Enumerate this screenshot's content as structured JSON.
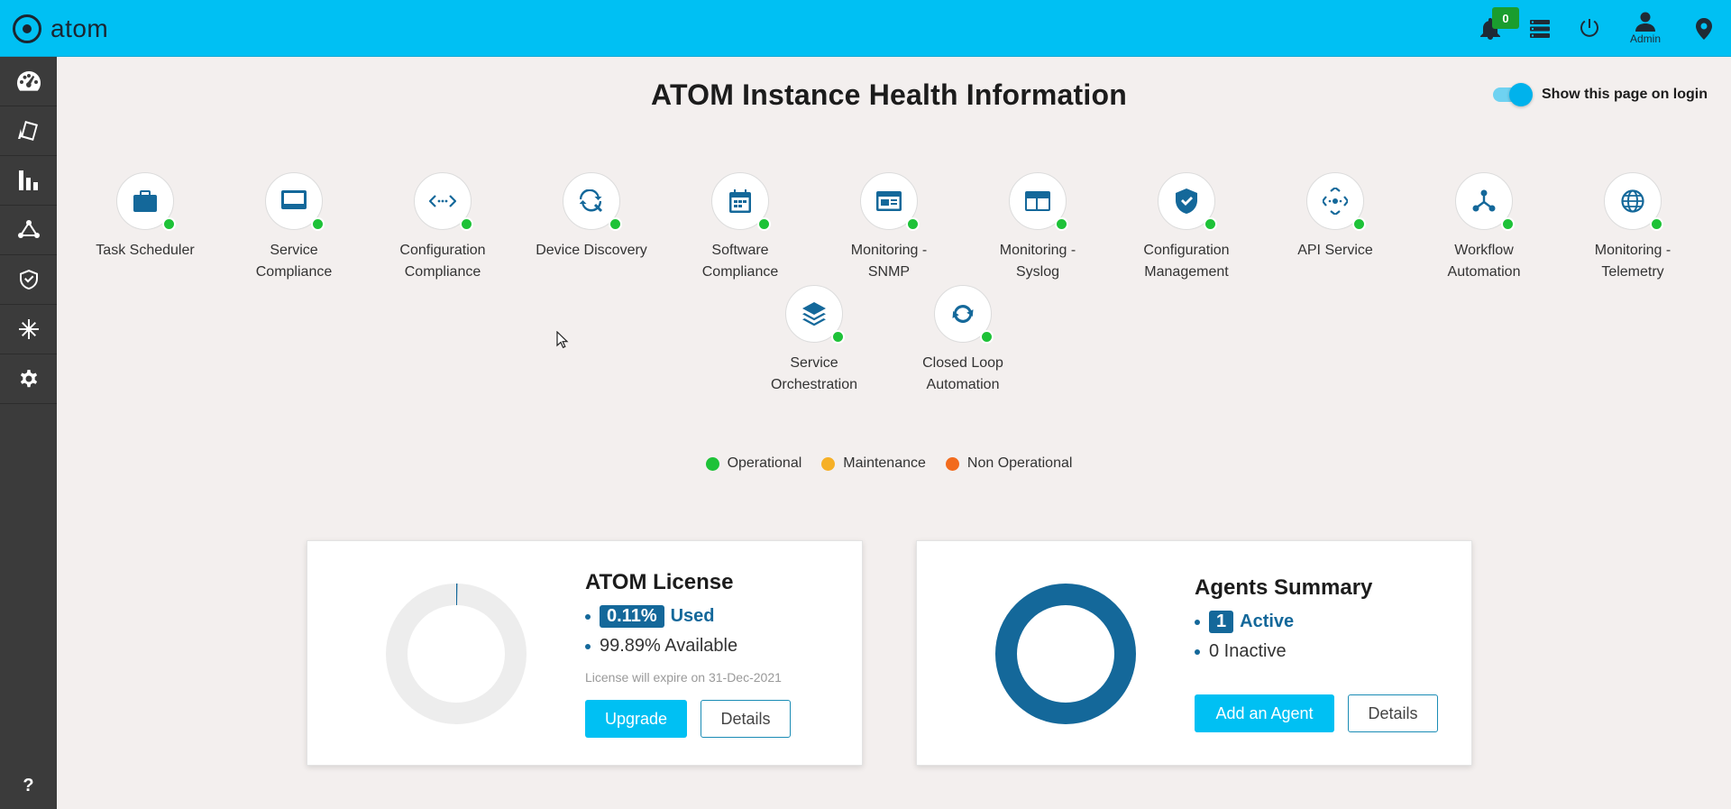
{
  "brand": {
    "name": "atom"
  },
  "header": {
    "notification_count": "0",
    "user_label": "Admin"
  },
  "sidebar": {
    "items": [
      {
        "icon": "dashboard-icon"
      },
      {
        "icon": "inventory-icon"
      },
      {
        "icon": "analytics-icon"
      },
      {
        "icon": "network-icon"
      },
      {
        "icon": "compliance-icon"
      },
      {
        "icon": "snowflake-icon"
      },
      {
        "icon": "settings-icon"
      }
    ],
    "help_label": "?"
  },
  "page": {
    "title": "ATOM Instance Health Information",
    "toggle_label": "Show this page on login",
    "toggle_on": true
  },
  "services": [
    {
      "line1": "Task Scheduler",
      "line2": "",
      "status": "Operational",
      "icon": "briefcase-icon"
    },
    {
      "line1": "Service",
      "line2": "Compliance",
      "status": "Operational",
      "icon": "monitor-icon"
    },
    {
      "line1": "Configuration",
      "line2": "Compliance",
      "status": "Operational",
      "icon": "code-arrows-icon"
    },
    {
      "line1": "Device Discovery",
      "line2": "",
      "status": "Operational",
      "icon": "discovery-icon"
    },
    {
      "line1": "Software",
      "line2": "Compliance",
      "status": "Operational",
      "icon": "calendar-icon"
    },
    {
      "line1": "Monitoring -",
      "line2": "SNMP",
      "status": "Operational",
      "icon": "snmp-window-icon"
    },
    {
      "line1": "Monitoring -",
      "line2": "Syslog",
      "status": "Operational",
      "icon": "syslog-table-icon"
    },
    {
      "line1": "Configuration",
      "line2": "Management",
      "status": "Operational",
      "icon": "shield-check-icon"
    },
    {
      "line1": "API Service",
      "line2": "",
      "status": "Operational",
      "icon": "api-arrows-icon"
    },
    {
      "line1": "Workflow",
      "line2": "Automation",
      "status": "Operational",
      "icon": "workflow-icon"
    },
    {
      "line1": "Monitoring -",
      "line2": "Telemetry",
      "status": "Operational",
      "icon": "globe-icon"
    },
    {
      "line1": "Service",
      "line2": "Orchestration",
      "status": "Operational",
      "icon": "layers-icon"
    },
    {
      "line1": "Closed Loop",
      "line2": "Automation",
      "status": "Operational",
      "icon": "loop-icon"
    }
  ],
  "legend": [
    {
      "label": "Operational",
      "color": "#1ec238"
    },
    {
      "label": "Maintenance",
      "color": "#f6b026"
    },
    {
      "label": "Non Operational",
      "color": "#f26b1d"
    }
  ],
  "license": {
    "title": "ATOM License",
    "used_value": "0.11%",
    "used_label": "Used",
    "used_fraction": 0.0011,
    "available_text": "99.89% Available",
    "expiry_note": "License will expire on 31-Dec-2021",
    "upgrade_label": "Upgrade",
    "details_label": "Details"
  },
  "agents": {
    "title": "Agents Summary",
    "active_count": "1",
    "active_label": "Active",
    "inactive_text": "0 Inactive",
    "active_fraction": 1.0,
    "add_label": "Add an Agent",
    "details_label": "Details"
  },
  "colors": {
    "topbar": "#00c0f3",
    "sidebar": "#3b3b3b",
    "accent": "#14689a",
    "operational": "#1ec238"
  }
}
